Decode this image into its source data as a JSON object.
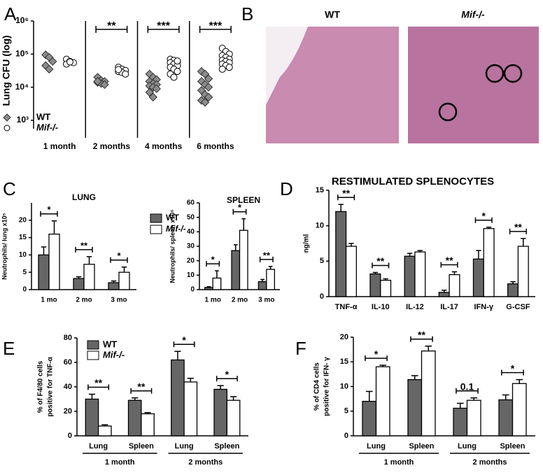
{
  "panel_B": {
    "label": "B",
    "images": [
      {
        "title": "WT"
      },
      {
        "title": "Mif-/-"
      }
    ]
  },
  "chart_data": [
    {
      "type": "strip",
      "label": "A",
      "ylabel": "Lung CFU (log)",
      "log": true,
      "categories": [
        "1 month",
        "2 months",
        "4 months",
        "6 months"
      ],
      "ylim": [
        1000,
        1000000
      ],
      "yticks": [
        {
          "value": 1000,
          "label": "10³"
        },
        {
          "value": 10000,
          "label": "10⁴"
        },
        {
          "value": 100000,
          "label": "10⁵"
        },
        {
          "value": 1000000,
          "label": "10⁶"
        }
      ],
      "series": [
        {
          "name": "WT",
          "color": "#8c8c8c",
          "values": [
            [
              95000,
              80000,
              60000,
              45000,
              35000
            ],
            [
              20000,
              16000,
              15000,
              14000,
              13000,
              12000,
              15000
            ],
            [
              25000,
              20000,
              17000,
              15000,
              13000,
              12000,
              11000,
              10000,
              9000,
              7000,
              5000
            ],
            [
              30000,
              25000,
              18000,
              15000,
              12000,
              10000,
              8000,
              6000,
              5000,
              4000,
              3500
            ]
          ]
        },
        {
          "name": "Mif-/-",
          "color": "#ffffff",
          "values": [
            [
              70000,
              60000,
              55000,
              50000,
              58000
            ],
            [
              40000,
              35000,
              32000,
              30000,
              28000,
              25000,
              34000
            ],
            [
              70000,
              65000,
              60000,
              55000,
              50000,
              45000,
              40000,
              35000,
              30000,
              25000,
              20000,
              62000
            ],
            [
              150000,
              120000,
              100000,
              90000,
              80000,
              70000,
              65000,
              60000,
              55000,
              50000,
              45000,
              40000,
              35000
            ]
          ]
        }
      ],
      "annotations": [
        null,
        "**",
        "***",
        "***"
      ]
    },
    {
      "type": "bar",
      "label": "C",
      "title": "LUNG",
      "ylabel": "Neutrophils/ lung x10⁵",
      "categories": [
        "1 mo",
        "2 mo",
        "3 mo"
      ],
      "ylim": [
        0,
        25
      ],
      "yticks": [
        0,
        5,
        10,
        15,
        20
      ],
      "series": [
        {
          "name": "WT",
          "color": "#666666",
          "values": [
            10,
            3.2,
            2
          ],
          "errors": [
            2.3,
            0.5,
            0.5
          ]
        },
        {
          "name": "Mif-/-",
          "color": "#ffffff",
          "values": [
            16,
            7.3,
            5
          ],
          "errors": [
            3.8,
            2.2,
            1.5
          ]
        }
      ],
      "annotations": [
        "*",
        "**",
        "*"
      ]
    },
    {
      "type": "bar",
      "title": "SPLEEN",
      "ylabel": "Neutrophils/ spleen x10⁶",
      "categories": [
        "1 mo",
        "2 mo",
        "3 mo"
      ],
      "ylim": [
        0,
        60
      ],
      "yticks": [
        0,
        10,
        20,
        30,
        40,
        50,
        60
      ],
      "series": [
        {
          "color": "#666666",
          "values": [
            1.5,
            27,
            5.5
          ],
          "errors": [
            0.5,
            4,
            1.5
          ]
        },
        {
          "color": "#ffffff",
          "values": [
            8,
            41,
            14
          ],
          "errors": [
            5,
            8,
            2
          ]
        }
      ],
      "annotations": [
        "*",
        "*",
        "**"
      ]
    },
    {
      "type": "bar",
      "label": "D",
      "title": "RESTIMULATED SPLENOCYTES",
      "ylabel": "ng/ml",
      "categories": [
        "TNF-α",
        "IL-10",
        "IL-12",
        "IL-17",
        "IFN-γ",
        "G-CSF"
      ],
      "ylim": [
        0,
        15
      ],
      "yticks": [
        0,
        5,
        10,
        15
      ],
      "series": [
        {
          "color": "#666666",
          "values": [
            12,
            3.2,
            5.7,
            0.6,
            5.3,
            1.8
          ],
          "errors": [
            1,
            0.2,
            0.4,
            0.3,
            1.2,
            0.3
          ]
        },
        {
          "color": "#ffffff",
          "values": [
            7.1,
            2.3,
            6.3,
            3.1,
            9.6,
            7.1
          ],
          "errors": [
            0.4,
            0.2,
            0.2,
            0.4,
            0.2,
            1.1
          ]
        }
      ],
      "annotations": [
        "**",
        "**",
        null,
        "**",
        "*",
        "**"
      ]
    },
    {
      "type": "bar",
      "label": "E",
      "ylabel": [
        "% of F4/80 cells",
        "positive for TNF-α"
      ],
      "categories": [
        "Lung",
        "Spleen",
        "Lung",
        "Spleen"
      ],
      "groups": [
        "1 month",
        "2 months"
      ],
      "ylim": [
        0,
        80
      ],
      "yticks": [
        0,
        20,
        40,
        60,
        80
      ],
      "series": [
        {
          "name": "WT",
          "color": "#666666",
          "values": [
            30,
            29,
            62,
            38
          ],
          "errors": [
            4,
            2,
            7,
            3
          ]
        },
        {
          "name": "Mif-/-",
          "color": "#ffffff",
          "values": [
            8,
            18,
            44,
            29
          ],
          "errors": [
            1,
            1,
            3,
            3
          ]
        }
      ],
      "annotations": [
        "**",
        "**",
        "*",
        "*"
      ]
    },
    {
      "type": "bar",
      "label": "F",
      "ylabel": [
        "% of CD4 cells",
        "positive for IFN- γ"
      ],
      "categories": [
        "Lung",
        "Spleen",
        "Lung",
        "Spleen"
      ],
      "groups": [
        "1 month",
        "2 months"
      ],
      "ylim": [
        0,
        20
      ],
      "yticks": [
        0,
        5,
        10,
        15,
        20
      ],
      "series": [
        {
          "color": "#666666",
          "values": [
            7,
            11.4,
            5.6,
            7.3
          ],
          "errors": [
            2,
            0.8,
            1,
            1
          ]
        },
        {
          "color": "#ffffff",
          "values": [
            14,
            17.2,
            7.2,
            10.6
          ],
          "errors": [
            0.3,
            1,
            0.5,
            0.8
          ]
        }
      ],
      "annotations": [
        "*",
        "**",
        "0.1",
        "*"
      ]
    }
  ]
}
